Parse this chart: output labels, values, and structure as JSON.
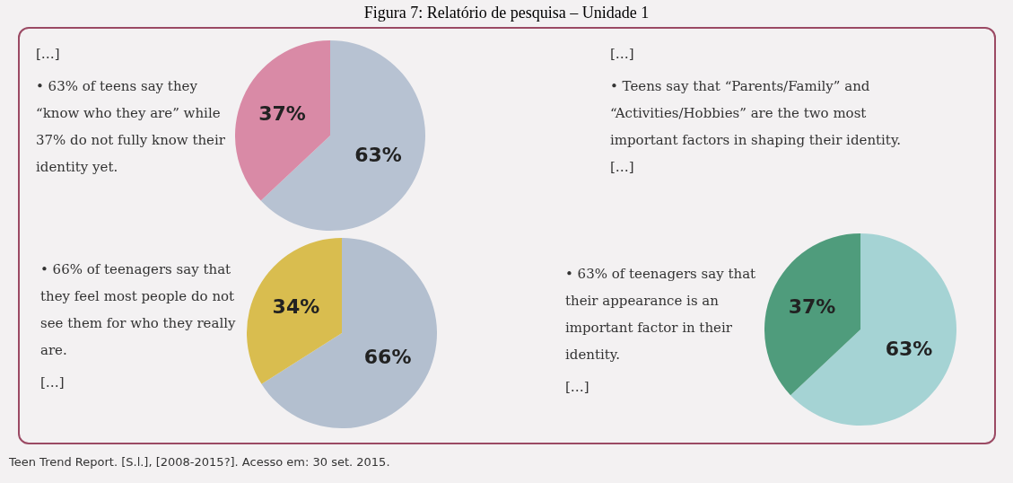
{
  "chart_data": [
    {
      "type": "pie",
      "title": "Figura 7: Relatório de pesquisa – Unidade 1",
      "categories": [
        null,
        null
      ],
      "values": [
        63,
        37
      ],
      "colors": [
        "#b7c2d2",
        "#d98aa6"
      ],
      "value_labels": [
        "63%",
        "37%"
      ],
      "annotations": [
        "[…]",
        "• 63% of teens say they “know who they are” while 37% do not fully know their identity yet."
      ]
    },
    {
      "type": "other",
      "annotations": [
        "[…]",
        "• Teens say that “Parents/Family” and “Activities/Hobbies” are the two most important factors in shaping their identity. […]"
      ]
    },
    {
      "type": "pie",
      "categories": [
        null,
        null
      ],
      "values": [
        66,
        34
      ],
      "colors": [
        "#b3bfcf",
        "#d9bd4f"
      ],
      "value_labels": [
        "66%",
        "34%"
      ],
      "annotations": [
        "• 66% of teenagers say that they feel most people do not see them for who they really are.",
        "[…]"
      ]
    },
    {
      "type": "pie",
      "categories": [
        null,
        null
      ],
      "values": [
        63,
        37
      ],
      "colors": [
        "#a5d3d4",
        "#4f9c7c"
      ],
      "value_labels": [
        "63%",
        "37%"
      ],
      "annotations": [
        "• 63% of teenagers say that their appearance is an important factor in their identity.",
        "[…]"
      ]
    },
    {
      "type": "other",
      "annotations": [
        "Teen Trend Report. [S.l.], [2008-2015?]. Acesso em: 30 set. 2015."
      ]
    }
  ]
}
